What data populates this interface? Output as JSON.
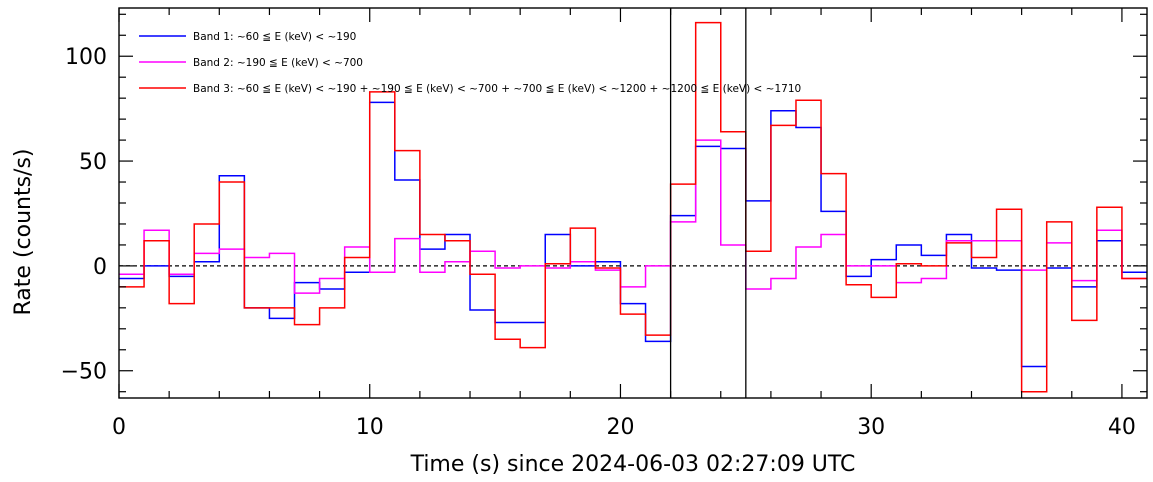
{
  "chart_data": {
    "type": "line",
    "step": true,
    "xlabel": "Time (s) since 2024-06-03 02:27:09 UTC",
    "ylabel": "Rate (counts/s)",
    "xlim": [
      0,
      41
    ],
    "ylim": [
      -63,
      123
    ],
    "x_ticks": [
      0,
      10,
      20,
      30,
      40
    ],
    "y_ticks": [
      -50,
      0,
      50,
      100
    ],
    "grid": false,
    "legend_position": "top-left",
    "zero_line": 0,
    "vertical_markers": [
      22,
      25
    ],
    "bin_edges": [
      0,
      1,
      2,
      3,
      4,
      5,
      6,
      7,
      8,
      9,
      10,
      11,
      12,
      13,
      14,
      15,
      16,
      17,
      18,
      19,
      20,
      21,
      22,
      23,
      24,
      25,
      26,
      27,
      28,
      29,
      30,
      31,
      32,
      33,
      34,
      35,
      36,
      37,
      38,
      39,
      40,
      41
    ],
    "series": [
      {
        "name": "Band 1: ~60 ≦ E (keV) < ~190",
        "color": "#0000ff",
        "values": [
          -6,
          0,
          -5,
          2,
          43,
          -20,
          -25,
          -8,
          -11,
          -3,
          78,
          41,
          8,
          15,
          -21,
          -27,
          -27,
          15,
          0,
          2,
          -18,
          -36,
          24,
          57,
          56,
          31,
          74,
          66,
          26,
          -5,
          3,
          10,
          5,
          15,
          -1,
          -2,
          -48,
          -1,
          -10,
          12,
          -3
        ]
      },
      {
        "name": "Band 2: ~190 ≦ E (keV) < ~700",
        "color": "#ff00ff",
        "values": [
          -4,
          17,
          -4,
          6,
          8,
          4,
          6,
          -13,
          -6,
          9,
          -3,
          13,
          -3,
          2,
          7,
          -1,
          0,
          -1,
          2,
          -2,
          -10,
          0,
          21,
          60,
          10,
          -11,
          -6,
          9,
          15,
          0,
          0,
          -8,
          -6,
          12,
          12,
          12,
          -2,
          11,
          -7,
          17,
          -6
        ]
      },
      {
        "name": "Band 3: ~60 ≦ E (keV) < ~190 + ~190 ≦ E (keV) < ~700 + ~700 ≦ E (keV) < ~1200 + ~1200 ≦ E (keV) < ~1710",
        "color": "#ff0000",
        "values": [
          -10,
          12,
          -18,
          20,
          40,
          -20,
          -20,
          -28,
          -20,
          4,
          83,
          55,
          15,
          12,
          -4,
          -35,
          -39,
          1,
          18,
          -1,
          -23,
          -33,
          39,
          116,
          64,
          7,
          67,
          79,
          44,
          -9,
          -15,
          1,
          0,
          11,
          4,
          27,
          -60,
          21,
          -26,
          28,
          -6
        ]
      }
    ]
  }
}
